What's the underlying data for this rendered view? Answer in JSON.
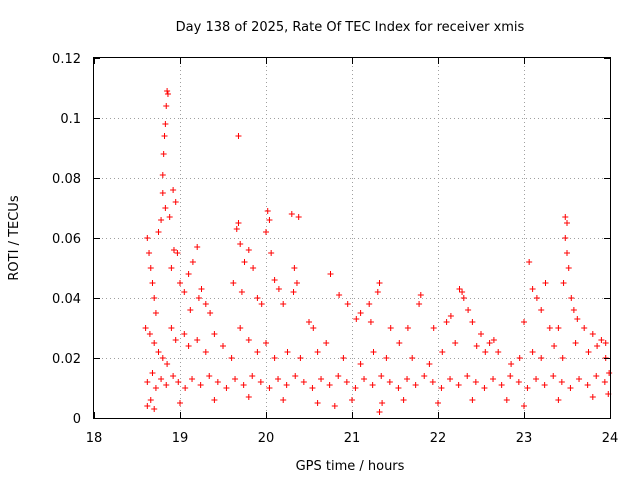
{
  "chart_data": {
    "type": "scatter",
    "title": "Day 138 of 2025, Rate Of TEC Index for receiver xmis",
    "xlabel": "GPS time / hours",
    "ylabel": "ROTI / TECUs",
    "xlim": [
      18,
      24
    ],
    "ylim": [
      0,
      0.12
    ],
    "x_ticks": [
      18,
      19,
      20,
      21,
      22,
      23,
      24
    ],
    "x_tick_labels": [
      "18",
      "19",
      "20",
      "21",
      "22",
      "23",
      "24"
    ],
    "y_ticks": [
      0,
      0.02,
      0.04,
      0.06,
      0.08,
      0.1,
      0.12
    ],
    "y_tick_labels": [
      "0",
      "0.02",
      "0.04",
      "0.06",
      "0.08",
      "0.1",
      "0.12"
    ],
    "grid": true,
    "marker": "+",
    "color": "#ff0000",
    "series": [
      {
        "name": "ROTI",
        "points": [
          [
            18.62,
            0.06
          ],
          [
            18.64,
            0.055
          ],
          [
            18.66,
            0.05
          ],
          [
            18.68,
            0.045
          ],
          [
            18.7,
            0.04
          ],
          [
            18.72,
            0.035
          ],
          [
            18.75,
            0.062
          ],
          [
            18.78,
            0.066
          ],
          [
            18.8,
            0.081
          ],
          [
            18.81,
            0.088
          ],
          [
            18.82,
            0.094
          ],
          [
            18.83,
            0.098
          ],
          [
            18.84,
            0.104
          ],
          [
            18.85,
            0.109
          ],
          [
            18.86,
            0.108
          ],
          [
            18.8,
            0.075
          ],
          [
            18.83,
            0.07
          ],
          [
            18.88,
            0.067
          ],
          [
            18.92,
            0.076
          ],
          [
            18.95,
            0.072
          ],
          [
            18.93,
            0.056
          ],
          [
            18.97,
            0.055
          ],
          [
            18.9,
            0.05
          ],
          [
            19.0,
            0.045
          ],
          [
            19.05,
            0.042
          ],
          [
            19.1,
            0.048
          ],
          [
            19.15,
            0.052
          ],
          [
            19.2,
            0.057
          ],
          [
            19.25,
            0.043
          ],
          [
            19.3,
            0.038
          ],
          [
            19.12,
            0.036
          ],
          [
            19.22,
            0.04
          ],
          [
            19.35,
            0.035
          ],
          [
            19.68,
            0.094
          ],
          [
            19.68,
            0.065
          ],
          [
            19.66,
            0.063
          ],
          [
            19.7,
            0.058
          ],
          [
            19.75,
            0.052
          ],
          [
            19.8,
            0.056
          ],
          [
            19.85,
            0.05
          ],
          [
            19.62,
            0.045
          ],
          [
            19.72,
            0.042
          ],
          [
            19.9,
            0.04
          ],
          [
            19.95,
            0.038
          ],
          [
            20.02,
            0.069
          ],
          [
            20.04,
            0.066
          ],
          [
            20.0,
            0.062
          ],
          [
            20.06,
            0.055
          ],
          [
            20.1,
            0.046
          ],
          [
            20.15,
            0.043
          ],
          [
            20.2,
            0.038
          ],
          [
            20.3,
            0.068
          ],
          [
            20.38,
            0.067
          ],
          [
            20.33,
            0.05
          ],
          [
            20.36,
            0.045
          ],
          [
            20.32,
            0.042
          ],
          [
            20.5,
            0.032
          ],
          [
            20.55,
            0.03
          ],
          [
            20.75,
            0.048
          ],
          [
            20.85,
            0.041
          ],
          [
            20.95,
            0.038
          ],
          [
            21.05,
            0.033
          ],
          [
            21.1,
            0.035
          ],
          [
            21.2,
            0.038
          ],
          [
            21.32,
            0.045
          ],
          [
            21.3,
            0.042
          ],
          [
            21.22,
            0.032
          ],
          [
            21.45,
            0.03
          ],
          [
            21.55,
            0.025
          ],
          [
            21.65,
            0.03
          ],
          [
            21.8,
            0.041
          ],
          [
            21.78,
            0.038
          ],
          [
            21.95,
            0.03
          ],
          [
            22.1,
            0.032
          ],
          [
            22.15,
            0.034
          ],
          [
            22.25,
            0.043
          ],
          [
            22.28,
            0.042
          ],
          [
            22.3,
            0.04
          ],
          [
            22.35,
            0.036
          ],
          [
            22.4,
            0.032
          ],
          [
            22.5,
            0.028
          ],
          [
            22.6,
            0.025
          ],
          [
            22.7,
            0.022
          ],
          [
            23.0,
            0.032
          ],
          [
            23.06,
            0.052
          ],
          [
            23.1,
            0.043
          ],
          [
            23.15,
            0.04
          ],
          [
            23.2,
            0.036
          ],
          [
            23.25,
            0.045
          ],
          [
            23.3,
            0.03
          ],
          [
            23.4,
            0.03
          ],
          [
            23.48,
            0.067
          ],
          [
            23.5,
            0.065
          ],
          [
            23.48,
            0.06
          ],
          [
            23.5,
            0.055
          ],
          [
            23.52,
            0.05
          ],
          [
            23.46,
            0.045
          ],
          [
            23.55,
            0.04
          ],
          [
            23.58,
            0.036
          ],
          [
            23.62,
            0.033
          ],
          [
            23.7,
            0.03
          ],
          [
            23.8,
            0.028
          ],
          [
            23.9,
            0.026
          ],
          [
            23.95,
            0.025
          ],
          [
            18.62,
            0.004
          ],
          [
            18.66,
            0.006
          ],
          [
            18.7,
            0.003
          ],
          [
            19.0,
            0.005
          ],
          [
            19.4,
            0.006
          ],
          [
            19.8,
            0.007
          ],
          [
            20.2,
            0.006
          ],
          [
            20.6,
            0.005
          ],
          [
            20.8,
            0.004
          ],
          [
            21.0,
            0.006
          ],
          [
            21.32,
            0.002
          ],
          [
            21.35,
            0.005
          ],
          [
            21.6,
            0.006
          ],
          [
            22.0,
            0.005
          ],
          [
            22.4,
            0.006
          ],
          [
            22.8,
            0.006
          ],
          [
            23.0,
            0.004
          ],
          [
            23.4,
            0.006
          ],
          [
            23.8,
            0.007
          ],
          [
            23.98,
            0.008
          ],
          [
            18.6,
            0.03
          ],
          [
            18.65,
            0.028
          ],
          [
            18.7,
            0.025
          ],
          [
            18.75,
            0.022
          ],
          [
            18.8,
            0.02
          ],
          [
            18.85,
            0.018
          ],
          [
            18.9,
            0.03
          ],
          [
            18.95,
            0.026
          ],
          [
            19.05,
            0.028
          ],
          [
            19.1,
            0.024
          ],
          [
            19.2,
            0.026
          ],
          [
            19.3,
            0.022
          ],
          [
            19.4,
            0.028
          ],
          [
            19.5,
            0.024
          ],
          [
            19.6,
            0.02
          ],
          [
            19.7,
            0.03
          ],
          [
            19.8,
            0.026
          ],
          [
            19.9,
            0.022
          ],
          [
            20.0,
            0.025
          ],
          [
            20.1,
            0.02
          ],
          [
            20.25,
            0.022
          ],
          [
            20.4,
            0.02
          ],
          [
            20.6,
            0.022
          ],
          [
            20.7,
            0.025
          ],
          [
            20.9,
            0.02
          ],
          [
            21.1,
            0.018
          ],
          [
            21.25,
            0.022
          ],
          [
            21.4,
            0.02
          ],
          [
            21.7,
            0.02
          ],
          [
            21.9,
            0.018
          ],
          [
            22.05,
            0.022
          ],
          [
            22.2,
            0.025
          ],
          [
            22.45,
            0.024
          ],
          [
            22.55,
            0.022
          ],
          [
            22.65,
            0.026
          ],
          [
            22.85,
            0.018
          ],
          [
            22.95,
            0.02
          ],
          [
            23.1,
            0.022
          ],
          [
            23.2,
            0.02
          ],
          [
            23.35,
            0.024
          ],
          [
            23.45,
            0.02
          ],
          [
            23.6,
            0.025
          ],
          [
            23.75,
            0.022
          ],
          [
            23.85,
            0.024
          ],
          [
            23.95,
            0.02
          ],
          [
            18.62,
            0.012
          ],
          [
            18.68,
            0.015
          ],
          [
            18.72,
            0.01
          ],
          [
            18.78,
            0.013
          ],
          [
            18.84,
            0.011
          ],
          [
            18.92,
            0.014
          ],
          [
            18.98,
            0.012
          ],
          [
            19.06,
            0.01
          ],
          [
            19.14,
            0.013
          ],
          [
            19.24,
            0.011
          ],
          [
            19.34,
            0.014
          ],
          [
            19.44,
            0.012
          ],
          [
            19.54,
            0.01
          ],
          [
            19.64,
            0.013
          ],
          [
            19.74,
            0.011
          ],
          [
            19.84,
            0.014
          ],
          [
            19.94,
            0.012
          ],
          [
            20.04,
            0.01
          ],
          [
            20.14,
            0.013
          ],
          [
            20.24,
            0.011
          ],
          [
            20.34,
            0.014
          ],
          [
            20.44,
            0.012
          ],
          [
            20.54,
            0.01
          ],
          [
            20.64,
            0.013
          ],
          [
            20.74,
            0.011
          ],
          [
            20.84,
            0.014
          ],
          [
            20.94,
            0.012
          ],
          [
            21.04,
            0.01
          ],
          [
            21.14,
            0.013
          ],
          [
            21.24,
            0.011
          ],
          [
            21.34,
            0.014
          ],
          [
            21.44,
            0.012
          ],
          [
            21.54,
            0.01
          ],
          [
            21.64,
            0.013
          ],
          [
            21.74,
            0.011
          ],
          [
            21.84,
            0.014
          ],
          [
            21.94,
            0.012
          ],
          [
            22.04,
            0.01
          ],
          [
            22.14,
            0.013
          ],
          [
            22.24,
            0.011
          ],
          [
            22.34,
            0.014
          ],
          [
            22.44,
            0.012
          ],
          [
            22.54,
            0.01
          ],
          [
            22.64,
            0.013
          ],
          [
            22.74,
            0.011
          ],
          [
            22.84,
            0.014
          ],
          [
            22.94,
            0.012
          ],
          [
            23.04,
            0.01
          ],
          [
            23.14,
            0.013
          ],
          [
            23.24,
            0.011
          ],
          [
            23.34,
            0.014
          ],
          [
            23.44,
            0.012
          ],
          [
            23.54,
            0.01
          ],
          [
            23.64,
            0.013
          ],
          [
            23.74,
            0.011
          ],
          [
            23.84,
            0.014
          ],
          [
            23.94,
            0.012
          ],
          [
            23.99,
            0.015
          ]
        ]
      }
    ]
  }
}
